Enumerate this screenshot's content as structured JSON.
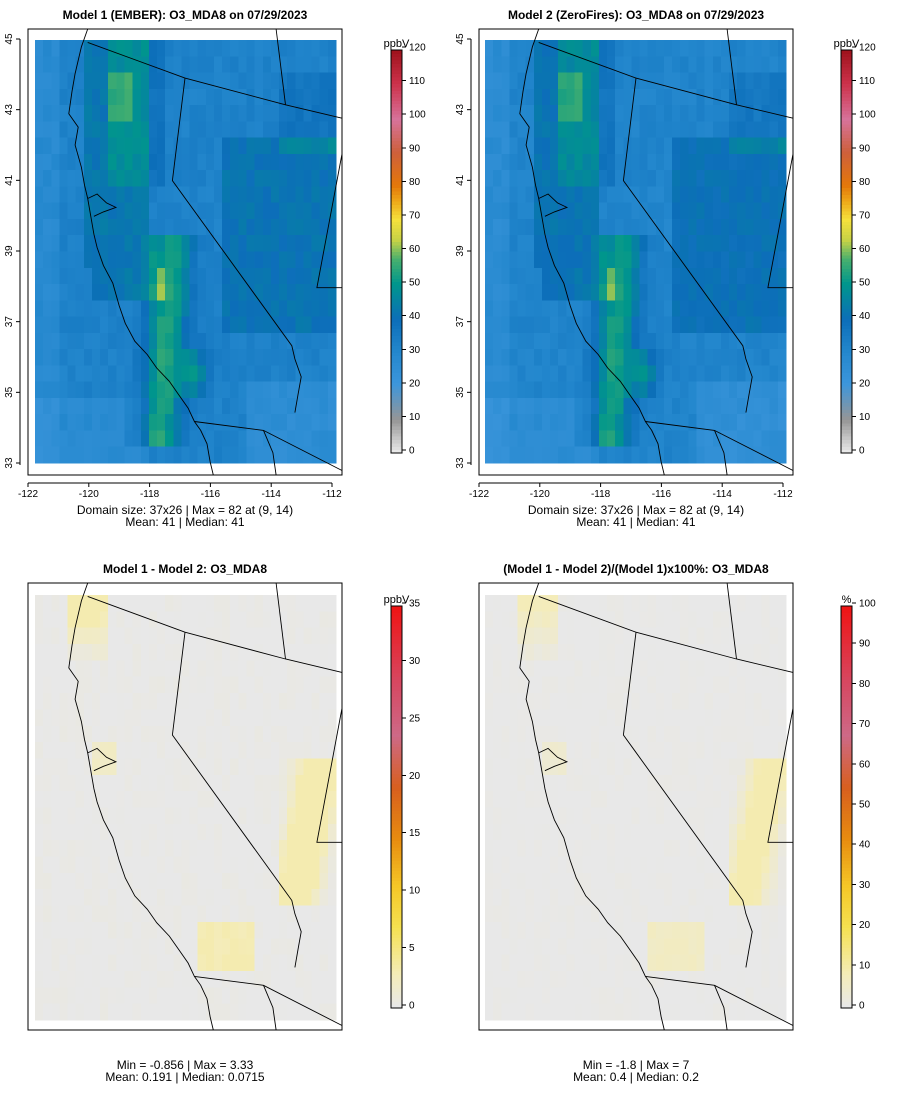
{
  "chart_data": [
    {
      "type": "heatmap",
      "title": "Model 1 (EMBER): O3_MDA8 on 07/29/2023",
      "grid": {
        "cols": 37,
        "rows": 26
      },
      "xlim": [
        -122,
        -112
      ],
      "ylim": [
        33,
        45
      ],
      "xticks": [
        "-122",
        "-120",
        "-118",
        "-116",
        "-114",
        "-112"
      ],
      "yticks": [
        "33",
        "35",
        "37",
        "39",
        "41",
        "43",
        "45"
      ],
      "colorbar": {
        "unit": "ppbV",
        "min": 0,
        "max": 120,
        "ticks": [
          "0",
          "10",
          "20",
          "30",
          "40",
          "50",
          "60",
          "70",
          "80",
          "90",
          "100",
          "110",
          "120"
        ],
        "palette": "ozone"
      },
      "field": {
        "base": 32,
        "max": 82,
        "max_loc": [
          9,
          14
        ],
        "has_valley": true
      },
      "stats": [
        "Domain size: 37x26 | Max = 82 at (9, 14)",
        "Mean: 41 |  Median: 41"
      ]
    },
    {
      "type": "heatmap",
      "title": "Model 2 (ZeroFires): O3_MDA8 on 07/29/2023",
      "grid": {
        "cols": 37,
        "rows": 26
      },
      "xlim": [
        -122,
        -112
      ],
      "ylim": [
        33,
        45
      ],
      "xticks": [
        "-122",
        "-120",
        "-118",
        "-116",
        "-114",
        "-112"
      ],
      "yticks": [
        "33",
        "35",
        "37",
        "39",
        "41",
        "43",
        "45"
      ],
      "colorbar": {
        "unit": "ppbV",
        "min": 0,
        "max": 120,
        "ticks": [
          "0",
          "10",
          "20",
          "30",
          "40",
          "50",
          "60",
          "70",
          "80",
          "90",
          "100",
          "110",
          "120"
        ],
        "palette": "ozone"
      },
      "field": {
        "base": 31,
        "max": 82,
        "max_loc": [
          9,
          14
        ],
        "has_valley": true
      },
      "stats": [
        "Domain size: 37x26 | Max = 82 at (9, 14)",
        "Mean: 41 |  Median: 41"
      ]
    },
    {
      "type": "heatmap",
      "title": "Model 1 - Model 2: O3_MDA8",
      "grid": {
        "cols": 37,
        "rows": 26
      },
      "xlim": [
        -122,
        -112
      ],
      "ylim": [
        33,
        45
      ],
      "xticks": [],
      "yticks": [],
      "colorbar": {
        "unit": "ppbV",
        "min": 0,
        "max": 35,
        "ticks": [
          "0",
          "5",
          "10",
          "15",
          "20",
          "25",
          "30",
          "35"
        ],
        "palette": "diff"
      },
      "field": {
        "min": -0.856,
        "max": 3.33,
        "mean": 0.191,
        "median": 0.0715
      },
      "stats": [
        "Min = -0.856 | Max = 3.33",
        "Mean: 0.191 |  Median: 0.0715"
      ]
    },
    {
      "type": "heatmap",
      "title": "(Model 1 - Model 2)/(Model 1)x100%: O3_MDA8",
      "grid": {
        "cols": 37,
        "rows": 26
      },
      "xlim": [
        -122,
        -112
      ],
      "ylim": [
        33,
        45
      ],
      "xticks": [],
      "yticks": [],
      "colorbar": {
        "unit": "%",
        "min": 0,
        "max": 100,
        "ticks": [
          "0",
          "10",
          "20",
          "30",
          "40",
          "50",
          "60",
          "70",
          "80",
          "90",
          "100"
        ],
        "palette": "diff"
      },
      "field": {
        "min": -1.8,
        "max": 7,
        "mean": 0.4,
        "median": 0.2
      },
      "stats": [
        "Min = -1.8 | Max = 7",
        "Mean: 0.4 |  Median: 0.2"
      ]
    }
  ]
}
